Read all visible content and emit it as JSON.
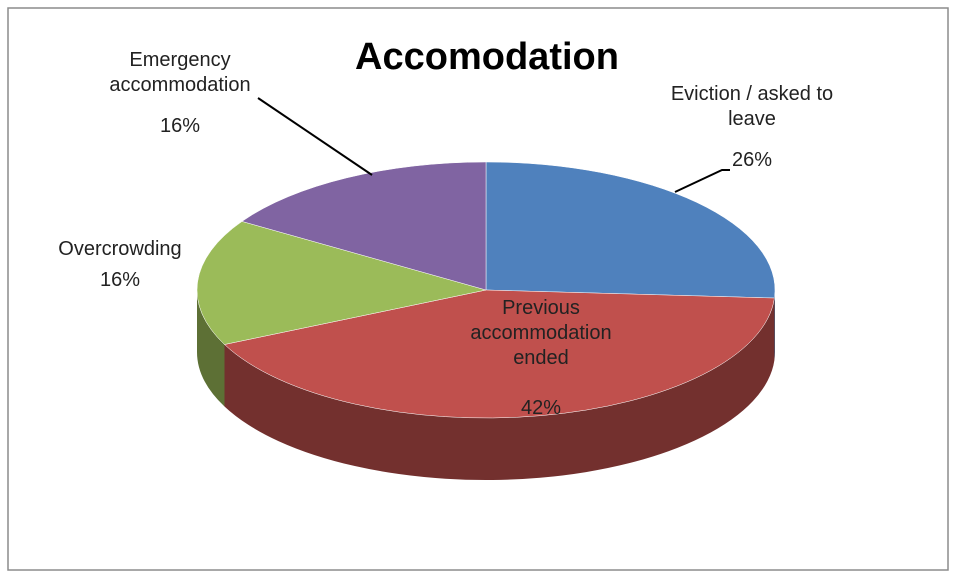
{
  "chart_data": {
    "type": "pie",
    "title": "Accomodation",
    "categories": [
      "Eviction / asked to leave",
      "Previous accommodation ended",
      "Overcrowding",
      "Emergency accommodation"
    ],
    "values": [
      26,
      42,
      16,
      16
    ],
    "value_labels": [
      "26%",
      "42%",
      "16%",
      "16%"
    ],
    "colors": [
      "#4f81bd",
      "#c0504d",
      "#9bbb59",
      "#8064a2"
    ]
  }
}
